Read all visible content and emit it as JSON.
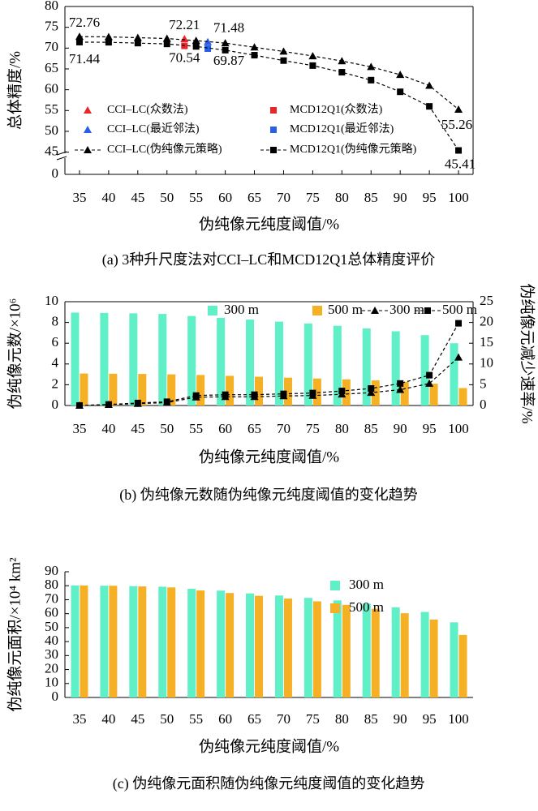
{
  "chart_data": [
    {
      "type": "line",
      "caption": "(a) 3种升尺度法对CCI–LC和MCD12Q1总体精度评价",
      "x_label": "伪纯像元纯度阈值/%",
      "y_label": "总体精度/%",
      "xlim": [
        32.5,
        102.5
      ],
      "xticks": [
        35,
        40,
        45,
        50,
        55,
        60,
        65,
        70,
        75,
        80,
        85,
        90,
        95,
        100
      ],
      "ylim": [
        0,
        80
      ],
      "ybreak": [
        0,
        42
      ],
      "yticks": [
        0,
        45,
        50,
        55,
        60,
        65,
        70,
        75,
        80
      ],
      "series": [
        {
          "name": "CCI–LC(众数法)",
          "color": "#e8262a",
          "marker": "triangle",
          "line": false,
          "x": [
            53
          ],
          "values": [
            72.21
          ],
          "labeled_points": [
            0
          ]
        },
        {
          "name": "MCD12Q1(众数法)",
          "color": "#e8262a",
          "marker": "square",
          "line": false,
          "x": [
            53
          ],
          "values": [
            70.54
          ],
          "labeled_points": [
            0
          ]
        },
        {
          "name": "CCI–LC(最近邻法)",
          "color": "#2a5ee8",
          "marker": "triangle",
          "line": false,
          "x": [
            57
          ],
          "values": [
            71.48
          ],
          "labeled_points": [
            0
          ]
        },
        {
          "name": "MCD12Q1(最近邻法)",
          "color": "#2a5ee8",
          "marker": "square",
          "line": false,
          "x": [
            57
          ],
          "values": [
            69.87
          ],
          "labeled_points": [
            0
          ]
        },
        {
          "name": "CCI–LC(伪纯像元策略)",
          "color": "#000000",
          "marker": "triangle",
          "line": true,
          "x": [
            35,
            40,
            45,
            50,
            55,
            60,
            65,
            70,
            75,
            80,
            85,
            90,
            95,
            100
          ],
          "values": [
            72.76,
            72.7,
            72.5,
            72.3,
            71.8,
            71.2,
            70.2,
            69.2,
            68.1,
            66.9,
            65.5,
            63.6,
            61.0,
            55.26
          ],
          "labeled_points": [
            0,
            13
          ]
        },
        {
          "name": "MCD12Q1(伪纯像元策略)",
          "color": "#000000",
          "marker": "square",
          "line": true,
          "x": [
            35,
            40,
            45,
            50,
            55,
            60,
            65,
            70,
            75,
            80,
            85,
            90,
            95,
            100
          ],
          "values": [
            71.44,
            71.4,
            71.2,
            71.0,
            70.4,
            69.5,
            68.3,
            67.0,
            65.8,
            64.2,
            62.3,
            59.5,
            56.0,
            45.41
          ],
          "labeled_points": [
            0,
            13
          ]
        }
      ]
    },
    {
      "type": "bar",
      "caption": "(b) 伪纯像元数随伪纯像元纯度阈值的变化趋势",
      "x_label": "伪纯像元纯度阈值/%",
      "y_label": "伪纯像元数/×10⁶",
      "y2_label": "伪纯像元减少速率/%",
      "categories": [
        "35",
        "40",
        "45",
        "50",
        "55",
        "60",
        "65",
        "70",
        "75",
        "80",
        "85",
        "90",
        "95",
        "100"
      ],
      "ylim": [
        0,
        10
      ],
      "yticks": [
        0,
        2,
        4,
        6,
        8,
        10
      ],
      "y2lim": [
        0,
        25
      ],
      "y2ticks": [
        0,
        5,
        10,
        15,
        20,
        25
      ],
      "series": [
        {
          "name": "300 m",
          "color": "#5ff0c8",
          "values": [
            8.95,
            8.92,
            8.88,
            8.82,
            8.62,
            8.45,
            8.28,
            8.08,
            7.9,
            7.68,
            7.42,
            7.15,
            6.78,
            6.0
          ]
        },
        {
          "name": "500 m",
          "color": "#f5b026",
          "values": [
            3.08,
            3.06,
            3.04,
            3.0,
            2.94,
            2.86,
            2.77,
            2.68,
            2.6,
            2.52,
            2.42,
            2.28,
            2.1,
            1.68
          ]
        },
        {
          "name": "300 m",
          "color": "#000000",
          "type": "line",
          "marker": "triangle",
          "axis": "y2",
          "values": [
            0,
            0.2,
            0.45,
            0.7,
            2.0,
            2.1,
            2.1,
            2.3,
            2.4,
            2.7,
            3.1,
            3.8,
            5.3,
            11.6
          ]
        },
        {
          "name": "500 m",
          "color": "#000000",
          "type": "line",
          "marker": "square",
          "axis": "y2",
          "values": [
            0,
            0.25,
            0.6,
            0.9,
            2.4,
            2.6,
            2.6,
            2.8,
            3.0,
            3.5,
            4.1,
            5.3,
            7.3,
            19.8
          ]
        }
      ]
    },
    {
      "type": "bar",
      "caption": "(c) 伪纯像元面积随伪纯像元纯度阈值的变化趋势",
      "x_label": "伪纯像元纯度阈值/%",
      "y_label": "伪纯像元面积/×10⁴ km²",
      "categories": [
        "35",
        "40",
        "45",
        "50",
        "55",
        "60",
        "65",
        "70",
        "75",
        "80",
        "85",
        "90",
        "95",
        "100"
      ],
      "ylim": [
        0,
        90
      ],
      "yticks": [
        0,
        10,
        20,
        30,
        40,
        50,
        60,
        70,
        80,
        90
      ],
      "series": [
        {
          "name": "300 m",
          "color": "#5ff0c8",
          "values": [
            80.2,
            80.0,
            79.7,
            79.3,
            77.8,
            76.5,
            74.5,
            73.0,
            71.3,
            69.5,
            67.2,
            64.5,
            61.2,
            53.8
          ]
        },
        {
          "name": "500 m",
          "color": "#f5b026",
          "values": [
            80.2,
            80.0,
            79.5,
            78.8,
            76.6,
            74.8,
            72.8,
            70.8,
            68.8,
            66.3,
            63.5,
            60.3,
            55.8,
            44.8
          ]
        }
      ]
    }
  ]
}
